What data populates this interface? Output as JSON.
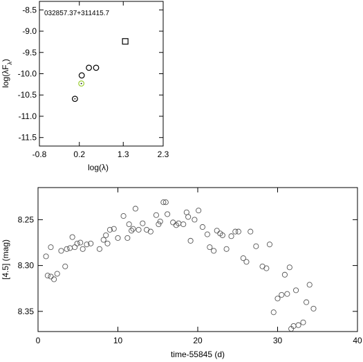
{
  "chart_data": [
    {
      "type": "scatter",
      "title": "032857.37+311415.7",
      "xlabel": "log(λ)",
      "ylabel": "log(λF",
      "ylabel_sub": "λ",
      "ylabel_end": ")",
      "xlim": [
        -0.8,
        2.3
      ],
      "ylim": [
        -11.7,
        -8.3
      ],
      "xticks": [
        -0.8,
        0.2,
        1.3,
        2.3
      ],
      "xtick_labels": [
        "-0.8",
        "0.2",
        "1.3",
        "2.3"
      ],
      "yticks": [
        -8.5,
        -9.0,
        -9.5,
        -10.0,
        -10.5,
        -11.0,
        -11.5
      ],
      "ytick_labels": [
        "-8.5",
        "-9.0",
        "-9.5",
        "-10.0",
        "-10.5",
        "-11.0",
        "-11.5"
      ],
      "points": [
        {
          "x": 0.09,
          "y": -10.59,
          "marker": "circle-dot",
          "color": "#000000"
        },
        {
          "x": 0.25,
          "y": -10.23,
          "marker": "circle-dot",
          "color": "#9acd32"
        },
        {
          "x": 0.26,
          "y": -10.04,
          "marker": "circle",
          "color": "#000000"
        },
        {
          "x": 0.44,
          "y": -9.86,
          "marker": "circle",
          "color": "#000000"
        },
        {
          "x": 0.62,
          "y": -9.86,
          "marker": "circle",
          "color": "#000000"
        },
        {
          "x": 1.35,
          "y": -9.24,
          "marker": "square",
          "color": "#000000"
        }
      ]
    },
    {
      "type": "scatter",
      "title": "",
      "xlabel": "time-55845 (d)",
      "ylabel": "[4.5] (mag)",
      "xlim": [
        0,
        40
      ],
      "ylim": [
        8.372,
        8.215
      ],
      "xticks": [
        0,
        10,
        20,
        30,
        40
      ],
      "xtick_labels": [
        "0",
        "10",
        "20",
        "30",
        "40"
      ],
      "yticks": [
        8.25,
        8.3,
        8.35
      ],
      "ytick_labels": [
        "8.25",
        "8.30",
        "8.35"
      ],
      "marker": "open-circle",
      "x": [
        1.0,
        1.2,
        1.6,
        1.6,
        2.0,
        2.4,
        2.9,
        3.4,
        3.6,
        4.0,
        4.3,
        4.6,
        4.9,
        5.3,
        5.6,
        6.1,
        6.6,
        7.7,
        8.2,
        8.5,
        8.7,
        9.0,
        9.5,
        10.0,
        10.7,
        11.2,
        11.4,
        11.7,
        11.9,
        12.2,
        12.6,
        13.1,
        13.6,
        14.1,
        14.8,
        15.1,
        15.3,
        15.7,
        16.0,
        16.2,
        16.9,
        17.3,
        17.6,
        18.2,
        18.6,
        18.8,
        19.1,
        19.6,
        20.1,
        20.6,
        21.2,
        21.5,
        22.0,
        22.4,
        22.8,
        23.1,
        23.6,
        24.2,
        24.7,
        25.1,
        25.7,
        26.1,
        26.6,
        27.3,
        28.1,
        28.6,
        29.0,
        29.5,
        30.0,
        30.5,
        30.9,
        31.2,
        31.5,
        31.7,
        32.0,
        32.3,
        32.6,
        33.2,
        33.6,
        34.0,
        34.5
      ],
      "y": [
        8.29,
        8.311,
        8.28,
        8.312,
        8.315,
        8.309,
        8.284,
        8.301,
        8.282,
        8.281,
        8.269,
        8.28,
        8.276,
        8.275,
        8.282,
        8.277,
        8.276,
        8.282,
        8.272,
        8.267,
        8.276,
        8.261,
        8.26,
        8.27,
        8.246,
        8.27,
        8.255,
        8.262,
        8.26,
        8.238,
        8.261,
        8.254,
        8.261,
        8.263,
        8.245,
        8.255,
        8.252,
        8.231,
        8.231,
        8.244,
        8.253,
        8.256,
        8.254,
        8.255,
        8.242,
        8.247,
        8.273,
        8.25,
        8.24,
        8.258,
        8.266,
        8.28,
        8.284,
        8.262,
        8.265,
        8.267,
        8.282,
        8.268,
        8.263,
        8.263,
        8.292,
        8.296,
        8.263,
        8.279,
        8.301,
        8.303,
        8.277,
        8.351,
        8.336,
        8.332,
        8.31,
        8.331,
        8.302,
        8.369,
        8.366,
        8.327,
        8.365,
        8.362,
        8.34,
        8.321,
        8.347
      ]
    }
  ]
}
